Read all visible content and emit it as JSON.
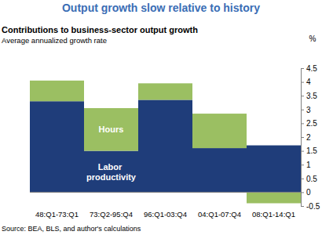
{
  "chart_data": {
    "type": "bar",
    "stacked": true,
    "title": "Output growth slow relative to history",
    "subtitle": "Contributions to business-sector output growth",
    "y_label_note": "Average annualized growth rate",
    "y_label": "%",
    "source": "Source: BEA, BLS, and author's calculations",
    "categories": [
      "48:Q1-73:Q1",
      "73:Q2-95:Q4",
      "96:Q1-03:Q4",
      "04:Q1-07:Q4",
      "08:Q1-14:Q1"
    ],
    "series": [
      {
        "name": "Labor productivity",
        "color": "#1f3d7a",
        "values": [
          3.3,
          1.5,
          3.35,
          1.6,
          1.7
        ]
      },
      {
        "name": "Hours",
        "color": "#9bbf62",
        "values": [
          0.75,
          1.55,
          0.6,
          1.25,
          -0.4
        ]
      }
    ],
    "ylim": [
      -0.5,
      4.5
    ],
    "yticks": [
      -0.5,
      0,
      0.5,
      1,
      1.5,
      2,
      2.5,
      3,
      3.5,
      4,
      4.5
    ]
  }
}
